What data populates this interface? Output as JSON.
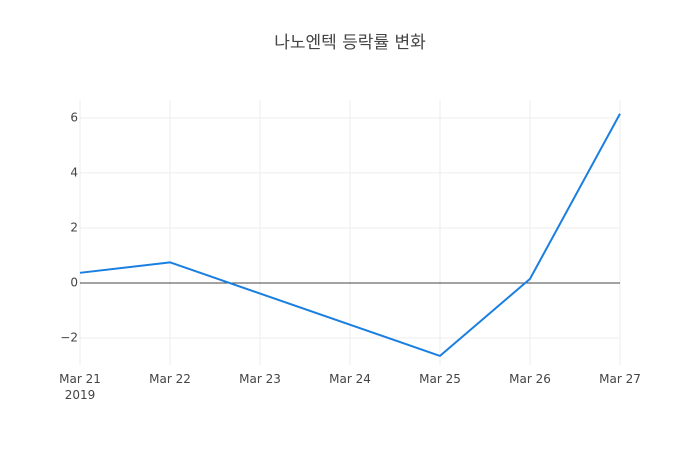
{
  "chart_data": {
    "type": "line",
    "title": "나노엔텍 등락률 변화",
    "x": [
      "2019-03-21",
      "2019-03-22",
      "2019-03-25",
      "2019-03-26",
      "2019-03-27"
    ],
    "series": [
      {
        "name": "등락률",
        "color": "#1a7fe0",
        "values": [
          0.37,
          0.75,
          -2.65,
          0.15,
          6.15
        ]
      }
    ],
    "xlim": [
      "2019-03-21",
      "2019-03-27"
    ],
    "xticks": [
      {
        "value": "2019-03-21",
        "label": "Mar 21\n2019"
      },
      {
        "value": "2019-03-22",
        "label": "Mar 22"
      },
      {
        "value": "2019-03-23",
        "label": "Mar 23"
      },
      {
        "value": "2019-03-24",
        "label": "Mar 24"
      },
      {
        "value": "2019-03-25",
        "label": "Mar 25"
      },
      {
        "value": "2019-03-26",
        "label": "Mar 26"
      },
      {
        "value": "2019-03-27",
        "label": "Mar 27"
      }
    ],
    "ylim": [
      -2.98,
      6.65
    ],
    "yticks": [
      {
        "value": -2,
        "label": "−2"
      },
      0,
      2,
      4,
      6
    ],
    "grid": true,
    "zeroline": true
  }
}
